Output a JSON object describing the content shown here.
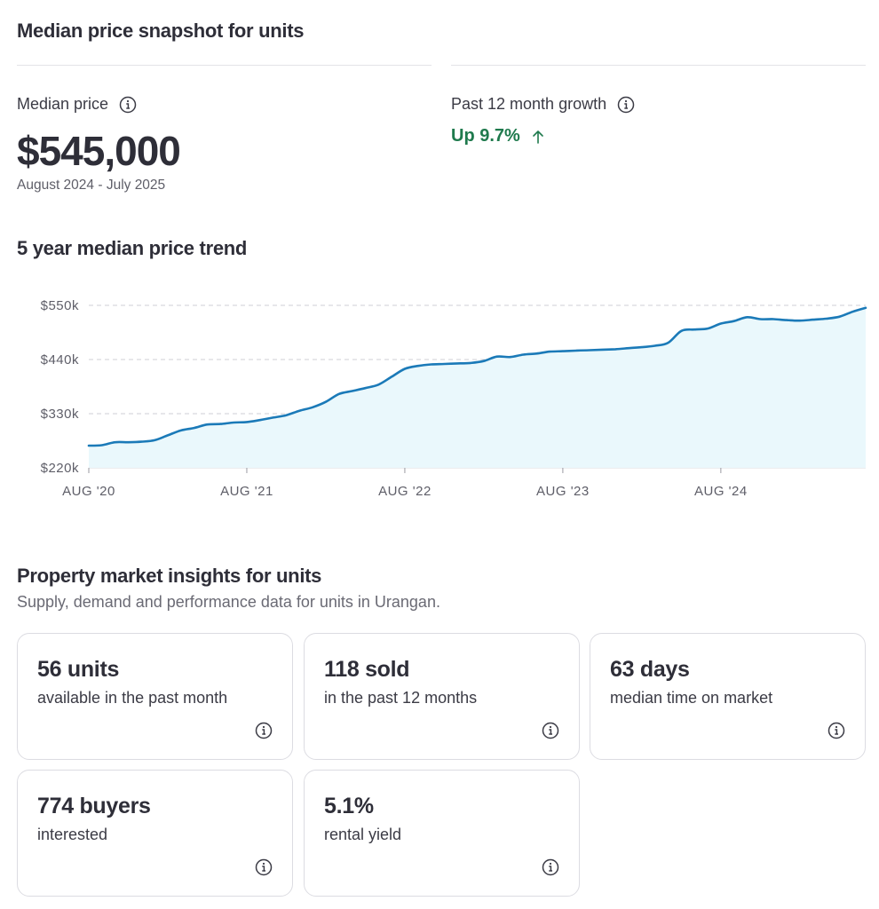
{
  "snapshot": {
    "title": "Median price snapshot for units",
    "median_label": "Median price",
    "median_value": "$545,000",
    "period": "August 2024 - July 2025",
    "growth_label": "Past 12 month growth",
    "growth_value": "Up 9.7%",
    "growth_color": "#1f7a4d"
  },
  "trend": {
    "title": "5 year median price trend"
  },
  "chart_data": {
    "type": "area",
    "title": "5 year median price trend",
    "xlabel": "",
    "ylabel": "",
    "y_ticks": [
      "$220k",
      "$330k",
      "$440k",
      "$550k"
    ],
    "y_tick_values": [
      220000,
      330000,
      440000,
      550000
    ],
    "x_ticks": [
      "AUG '20",
      "AUG '21",
      "AUG '22",
      "AUG '23",
      "AUG '24"
    ],
    "x_tick_months": [
      0,
      12,
      24,
      36,
      48
    ],
    "ylim": [
      220000,
      550000
    ],
    "xlim": [
      0,
      59
    ],
    "grid": "horizontal dashed",
    "line_color": "#1b7ab8",
    "fill_color": "#eaf8fc",
    "series": [
      {
        "values": [
          265000,
          266000,
          272000,
          272000,
          273000,
          276000,
          286000,
          296000,
          301000,
          308000,
          309000,
          312000,
          313000,
          317000,
          322000,
          327000,
          336000,
          343000,
          354000,
          370000,
          376000,
          382000,
          389000,
          405000,
          421000,
          427000,
          430000,
          431000,
          432000,
          433000,
          437000,
          446000,
          445000,
          450000,
          452000,
          456000,
          457000,
          458000,
          459000,
          460000,
          461000,
          463000,
          465000,
          468000,
          474000,
          498000,
          501000,
          503000,
          513000,
          518000,
          526000,
          522000,
          522000,
          520000,
          519000,
          521000,
          523000,
          527000,
          537000,
          545000
        ]
      }
    ]
  },
  "insights": {
    "title": "Property market insights for units",
    "subtitle": "Supply, demand and performance data for units in Urangan.",
    "cards": [
      {
        "value": "56 units",
        "desc": "available in the past month"
      },
      {
        "value": "118 sold",
        "desc": "in the past 12 months"
      },
      {
        "value": "63 days",
        "desc": "median time on market"
      },
      {
        "value": "774 buyers",
        "desc": "interested"
      },
      {
        "value": "5.1%",
        "desc": "rental yield"
      }
    ]
  }
}
